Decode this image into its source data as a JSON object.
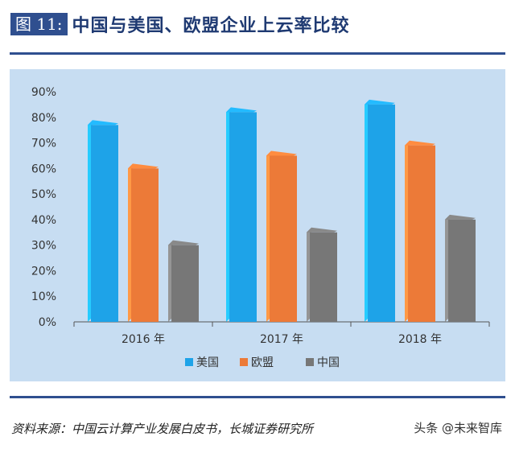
{
  "header": {
    "badge": "图 11:",
    "title": "中国与美国、欧盟企业上云率比较"
  },
  "colors": {
    "us": "#1ea3e8",
    "eu": "#ec7a38",
    "cn": "#777777",
    "panel": "#c7ddf2",
    "rule": "#2f4f8f"
  },
  "chart_data": {
    "type": "bar",
    "categories": [
      "2016 年",
      "2017 年",
      "2018 年"
    ],
    "series": [
      {
        "name": "美国",
        "values": [
          77,
          82,
          85
        ]
      },
      {
        "name": "欧盟",
        "values": [
          60,
          65,
          69
        ]
      },
      {
        "name": "中国",
        "values": [
          30,
          35,
          40
        ]
      }
    ],
    "yticks": [
      "0%",
      "10%",
      "20%",
      "30%",
      "40%",
      "50%",
      "60%",
      "70%",
      "80%",
      "90%"
    ],
    "ylim": [
      0,
      90
    ],
    "legend_position": "bottom",
    "grid": false
  },
  "source": "资料来源：中国云计算产业发展白皮书，长城证券研究所",
  "watermark": "头条 @未来智库"
}
